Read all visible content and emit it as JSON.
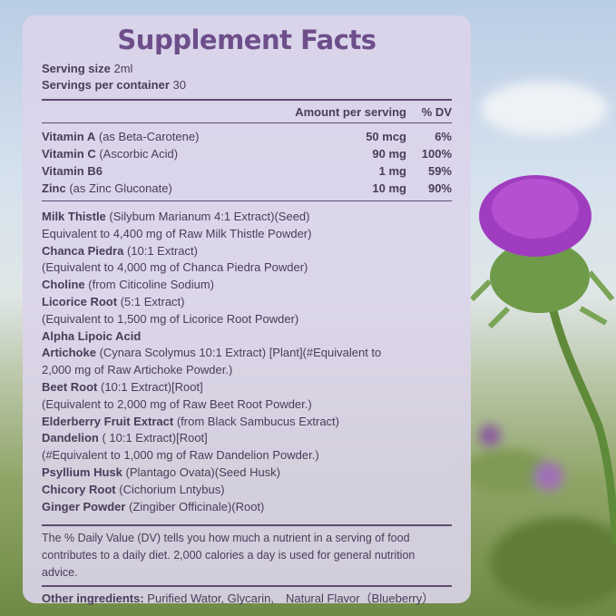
{
  "title": "Supplement Facts",
  "serving": {
    "size_label": "Serving size",
    "size_value": "2ml",
    "per_label": "Servings per container",
    "per_value": "30"
  },
  "header": {
    "amount": "Amount per serving",
    "dv": "% DV"
  },
  "nutrients": [
    {
      "name": "Vitamin A",
      "detail": " (as Beta-Carotene)",
      "amount": "50 mcg",
      "dv": "6%"
    },
    {
      "name": "Vitamin C",
      "detail": " (Ascorbic Acid)",
      "amount": "90 mg",
      "dv": "100%"
    },
    {
      "name": "Vitamin B6",
      "detail": "",
      "amount": "1 mg",
      "dv": "59%"
    },
    {
      "name": "Zinc",
      "detail": " (as Zinc Gluconate)",
      "amount": "10 mg",
      "dv": "90%"
    }
  ],
  "ingredients": [
    {
      "bold": "Milk Thistle",
      "rest": " (Silybum Marianum 4:1 Extract)(Seed)"
    },
    {
      "bold": "",
      "rest": "Equivalent to 4,400 mg of Raw Milk Thistle Powder)"
    },
    {
      "bold": "Chanca Piedra",
      "rest": " (10:1 Extract)"
    },
    {
      "bold": "",
      "rest": "(Equivalent to 4,000 mg of Chanca Piedra Powder)"
    },
    {
      "bold": "Choline",
      "rest": " (from Citicoline Sodium)"
    },
    {
      "bold": "Licorice Root",
      "rest": " (5:1 Extract)"
    },
    {
      "bold": "",
      "rest": "(Equivalent to 1,500 mg of Licorice Root Powder)"
    },
    {
      "bold": "Alpha Lipoic Acid",
      "rest": ""
    },
    {
      "bold": "Artichoke",
      "rest": " (Cynara Scolymus 10:1 Extract) [Plant](#Equivalent to"
    },
    {
      "bold": "",
      "rest": "2,000 mg of Raw Artichoke Powder.)"
    },
    {
      "bold": "Beet Root",
      "rest": " (10:1 Extract)[Root]"
    },
    {
      "bold": "",
      "rest": "(Equivalent to 2,000 mg of Raw Beet Root Powder.)"
    },
    {
      "bold": "Elderberry Fruit Extract",
      "rest": " (from Black Sambucus Extract)"
    },
    {
      "bold": "Dandelion",
      "rest": " ( 10:1 Extract)[Root]"
    },
    {
      "bold": "",
      "rest": "(#Equivalent to 1,000 mg of Raw Dandelion Powder.)"
    },
    {
      "bold": "Psyllium Husk",
      "rest": " (Plantago Ovata)(Seed Husk)"
    },
    {
      "bold": "Chicory Root",
      "rest": " (Cichorium Lntybus)"
    },
    {
      "bold": "Ginger Powder",
      "rest": " (Zingiber Officinale)(Root)"
    }
  ],
  "dv_note": "The % Daily Value (DV) tells you how much a nutrient in a serving of food contributes to a daily diet. 2,000 calories a day is used for general nutrition advice.",
  "other": {
    "label": "Other ingredients:",
    "value": " Purified Wator, Glycarin,　Natural Flavor（Blueberry）"
  },
  "colors": {
    "title": "#6d4e8a",
    "text": "#4a3c5a",
    "panel": "#dcd4ea",
    "flower": "#a03cc0"
  }
}
